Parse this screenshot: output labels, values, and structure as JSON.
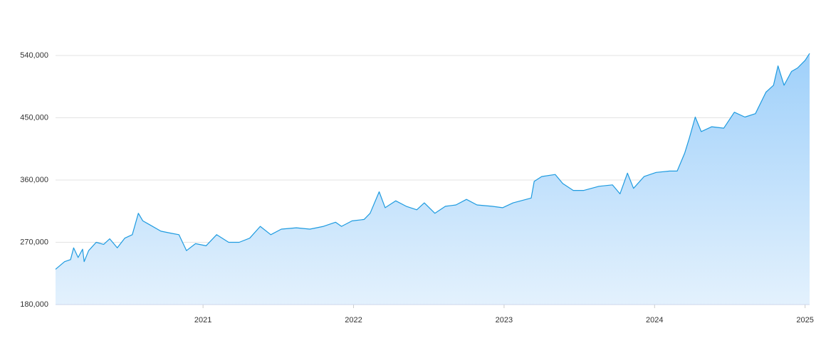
{
  "chart_data": {
    "type": "area",
    "x": [
      2020.02,
      2020.08,
      2020.12,
      2020.14,
      2020.17,
      2020.2,
      2020.21,
      2020.24,
      2020.29,
      2020.34,
      2020.38,
      2020.43,
      2020.48,
      2020.53,
      2020.57,
      2020.6,
      2020.64,
      2020.72,
      2020.79,
      2020.84,
      2020.89,
      2020.95,
      2021.02,
      2021.09,
      2021.17,
      2021.24,
      2021.31,
      2021.38,
      2021.45,
      2021.52,
      2021.62,
      2021.71,
      2021.8,
      2021.88,
      2021.92,
      2021.99,
      2022.07,
      2022.11,
      2022.17,
      2022.21,
      2022.28,
      2022.35,
      2022.42,
      2022.47,
      2022.54,
      2022.61,
      2022.68,
      2022.75,
      2022.82,
      2022.92,
      2022.99,
      2023.06,
      2023.18,
      2023.2,
      2023.25,
      2023.34,
      2023.39,
      2023.46,
      2023.53,
      2023.63,
      2023.72,
      2023.77,
      2023.82,
      2023.86,
      2023.93,
      2024.01,
      2024.1,
      2024.15,
      2024.2,
      2024.23,
      2024.27,
      2024.31,
      2024.38,
      2024.46,
      2024.53,
      2024.6,
      2024.67,
      2024.74,
      2024.79,
      2024.82,
      2024.86,
      2024.91,
      2024.95,
      2025.0,
      2025.03
    ],
    "values": [
      231000,
      242000,
      245000,
      262000,
      248000,
      260000,
      242000,
      258000,
      270000,
      267000,
      275000,
      262000,
      276000,
      281000,
      312000,
      301000,
      296000,
      286000,
      283000,
      281000,
      258000,
      268000,
      265000,
      281000,
      270000,
      270000,
      276000,
      293000,
      281000,
      289000,
      291000,
      289000,
      293000,
      299000,
      293000,
      301000,
      303000,
      312000,
      343000,
      320000,
      330000,
      322000,
      317000,
      327000,
      312000,
      322000,
      324000,
      332000,
      324000,
      322000,
      320000,
      327000,
      334000,
      358000,
      365000,
      368000,
      355000,
      345000,
      345000,
      351000,
      353000,
      340000,
      370000,
      348000,
      365000,
      371000,
      373000,
      373000,
      399000,
      420000,
      451000,
      430000,
      437000,
      435000,
      458000,
      451000,
      456000,
      487000,
      497000,
      525000,
      497000,
      517000,
      522000,
      533000,
      543000
    ],
    "color": "#1e9be0",
    "xlim": [
      2020.02,
      2025.03
    ],
    "xticks": [
      2021,
      2022,
      2023,
      2024,
      2025
    ],
    "ylim": [
      180000,
      540000
    ],
    "yticks": [
      {
        "value": 180000,
        "label": "180,000"
      },
      {
        "value": 270000,
        "label": "270,000"
      },
      {
        "value": 360000,
        "label": "360,000"
      },
      {
        "value": 450000,
        "label": "450,000"
      },
      {
        "value": 540000,
        "label": "540,000"
      }
    ],
    "grid": true
  }
}
